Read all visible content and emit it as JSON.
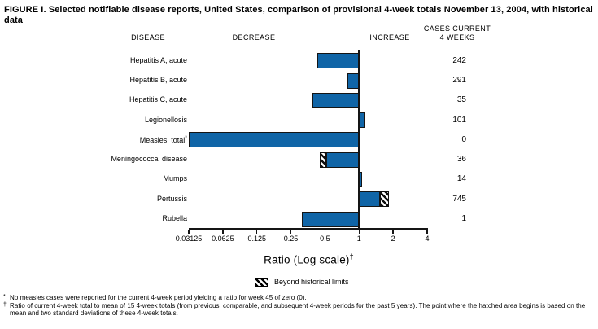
{
  "title": "FIGURE I. Selected notifiable disease reports, United States, comparison of provisional 4-week totals November 13, 2004, with historical data",
  "column_headers": {
    "disease": "DISEASE",
    "decrease": "DECREASE",
    "increase": "INCREASE",
    "cases_line1": "CASES CURRENT",
    "cases_line2": "4 WEEKS"
  },
  "chart_data": {
    "type": "bar",
    "orientation": "horizontal",
    "scale": "log2",
    "axis": {
      "label": "Ratio (Log scale)",
      "label_superscript": "†",
      "ticks": [
        "0.03125",
        "0.0625",
        "0.125",
        "0.25",
        "0.5",
        "1",
        "2",
        "4"
      ],
      "tick_values": [
        0.03125,
        0.0625,
        0.125,
        0.25,
        0.5,
        1,
        2,
        4
      ],
      "min": 0.03125,
      "max": 4,
      "reference_line": 1
    },
    "rows": [
      {
        "disease": "Hepatitis A, acute",
        "superscript": "",
        "cases": "242",
        "ratio": 0.43,
        "hatch_from": null
      },
      {
        "disease": "Hepatitis B, acute",
        "superscript": "",
        "cases": "291",
        "ratio": 0.79,
        "hatch_from": null
      },
      {
        "disease": "Hepatitis C, acute",
        "superscript": "",
        "cases": "35",
        "ratio": 0.39,
        "hatch_from": null
      },
      {
        "disease": "Legionellosis",
        "superscript": "",
        "cases": "101",
        "ratio": 1.13,
        "hatch_from": null
      },
      {
        "disease": "Measles, total",
        "superscript": "*",
        "cases": "0",
        "ratio": 0,
        "hatch_from": null
      },
      {
        "disease": "Meningococcal disease",
        "superscript": "",
        "cases": "36",
        "ratio": 0.45,
        "hatch_from": 0.51
      },
      {
        "disease": "Mumps",
        "superscript": "",
        "cases": "14",
        "ratio": 1.07,
        "hatch_from": null
      },
      {
        "disease": "Pertussis",
        "superscript": "",
        "cases": "745",
        "ratio": 1.85,
        "hatch_from": 1.53
      },
      {
        "disease": "Rubella",
        "superscript": "",
        "cases": "1",
        "ratio": 0.31,
        "hatch_from": null
      }
    ],
    "legend": {
      "swatch": "diagonal-hatch",
      "label": "Beyond historical limits"
    },
    "beyond_historical_limits": [
      "Meningococcal disease",
      "Pertussis"
    ]
  },
  "footnotes": [
    {
      "marker": "*",
      "text": "No measles cases were reported for the current 4-week period yielding a ratio for week 45 of zero (0)."
    },
    {
      "marker": "†",
      "text": "Ratio of current 4-week total to mean of 15 4-week totals (from previous, comparable, and subsequent 4-week periods for the past 5 years). The point where the hatched area begins is based on the mean and two standard deviations of these 4-week totals."
    }
  ],
  "colors": {
    "bar_fill": "#1065a7",
    "bar_border": "#151515",
    "text": "#000000",
    "background": "#ffffff"
  }
}
